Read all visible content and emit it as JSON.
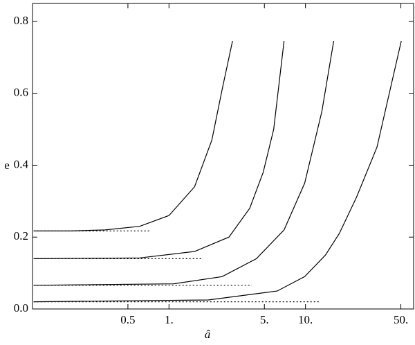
{
  "chart_data": {
    "type": "line",
    "x_label": "â",
    "y_label": "e",
    "x_log": true,
    "xlim": [
      0.1,
      62
    ],
    "ylim": [
      0,
      0.85
    ],
    "xticks": [
      0.5,
      {
        "value": 1,
        "label": "1."
      },
      {
        "value": 5,
        "label": "5."
      },
      {
        "value": 10,
        "label": "10."
      },
      {
        "value": 50,
        "label": "50."
      }
    ],
    "yticks": [
      {
        "value": 0,
        "label": "0.0"
      },
      0.2,
      0.4,
      0.6,
      0.8
    ],
    "series": [
      {
        "color": "#000000",
        "style": "solid",
        "x": [
          0.102,
          0.19,
          0.34,
          0.61,
          1,
          1.54,
          2.06,
          2.45,
          2.92
        ],
        "values": [
          0.217,
          0.217,
          0.22,
          0.23,
          0.26,
          0.34,
          0.47,
          0.61,
          0.746
        ]
      },
      {
        "color": "#000000",
        "style": "solid",
        "x": [
          0.102,
          0.61,
          1.54,
          2.75,
          3.9,
          4.9,
          5.85,
          6.97
        ],
        "values": [
          0.14,
          0.142,
          0.16,
          0.2,
          0.28,
          0.38,
          0.5,
          0.746
        ]
      },
      {
        "color": "#000000",
        "style": "solid",
        "x": [
          0.102,
          1.08,
          2.45,
          4.37,
          6.97,
          9.87,
          13.2,
          16.1
        ],
        "values": [
          0.066,
          0.07,
          0.09,
          0.14,
          0.22,
          0.35,
          0.55,
          0.746
        ]
      },
      {
        "color": "#000000",
        "style": "solid",
        "x": [
          0.102,
          1.94,
          6.2,
          9.87,
          14.0,
          17.7,
          23.6,
          33.4,
          50.4
        ],
        "values": [
          0.02,
          0.025,
          0.05,
          0.09,
          0.15,
          0.21,
          0.31,
          0.45,
          0.746
        ]
      },
      {
        "color": "#000000",
        "style": "dotted",
        "x": [
          0.102,
          0.72
        ],
        "values": [
          0.217,
          0.217
        ]
      },
      {
        "color": "#000000",
        "style": "dotted",
        "x": [
          0.102,
          1.77
        ],
        "values": [
          0.14,
          0.14
        ]
      },
      {
        "color": "#000000",
        "style": "dotted",
        "x": [
          0.102,
          4.04
        ],
        "values": [
          0.066,
          0.066
        ]
      },
      {
        "color": "#000000",
        "style": "dotted",
        "x": [
          0.102,
          12.9
        ],
        "values": [
          0.02,
          0.02
        ]
      }
    ]
  }
}
